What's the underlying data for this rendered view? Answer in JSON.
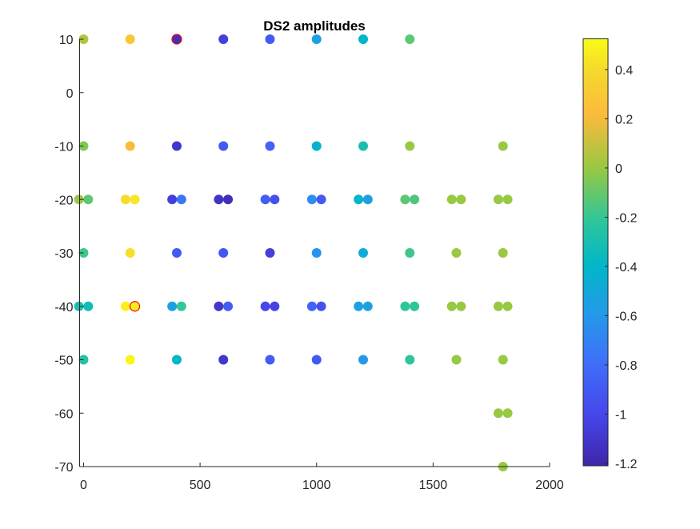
{
  "chart_data": {
    "type": "scatter",
    "title": "DS2 amplitudes",
    "xlabel": "",
    "ylabel": "",
    "xlim": [
      -17,
      2000
    ],
    "ylim": [
      -70,
      10
    ],
    "xticks": [
      "0",
      "500",
      "1000",
      "1500",
      "2000"
    ],
    "xtick_values": [
      0,
      500,
      1000,
      1500,
      2000
    ],
    "yticks": [
      "10",
      "0",
      "-10",
      "-20",
      "-30",
      "-40",
      "-50",
      "-60",
      "-70"
    ],
    "ytick_values": [
      10,
      0,
      -10,
      -20,
      -30,
      -40,
      -50,
      -60,
      -70
    ],
    "grid": false,
    "colormap": "parula",
    "colorbar": {
      "clim": [
        -1.21,
        0.525
      ],
      "ticks": [
        "0.4",
        "0.2",
        "0",
        "-0.2",
        "-0.4",
        "-0.6",
        "-0.8",
        "-1",
        "-1.2"
      ],
      "tick_values": [
        0.4,
        0.2,
        0,
        -0.2,
        -0.4,
        -0.6,
        -0.8,
        -1,
        -1.2
      ],
      "placement": "right"
    },
    "points": [
      {
        "x": 0,
        "y": 10,
        "v": 0.05
      },
      {
        "x": 200,
        "y": 10,
        "v": 0.3
      },
      {
        "x": 400,
        "y": 10,
        "v": -1.15,
        "edge": "#ff0000"
      },
      {
        "x": 600,
        "y": 10,
        "v": -1.05
      },
      {
        "x": 800,
        "y": 10,
        "v": -0.9
      },
      {
        "x": 1000,
        "y": 10,
        "v": -0.55
      },
      {
        "x": 1200,
        "y": 10,
        "v": -0.4
      },
      {
        "x": 1400,
        "y": 10,
        "v": -0.12
      },
      {
        "x": 0,
        "y": -10,
        "v": -0.05
      },
      {
        "x": 200,
        "y": -10,
        "v": 0.22
      },
      {
        "x": 400,
        "y": -10,
        "v": -1.1
      },
      {
        "x": 600,
        "y": -10,
        "v": -0.9
      },
      {
        "x": 800,
        "y": -10,
        "v": -0.85
      },
      {
        "x": 1000,
        "y": -10,
        "v": -0.42
      },
      {
        "x": 1200,
        "y": -10,
        "v": -0.3
      },
      {
        "x": 1400,
        "y": -10,
        "v": 0
      },
      {
        "x": 1800,
        "y": -10,
        "v": 0
      },
      {
        "x": -20,
        "y": -20,
        "v": 0
      },
      {
        "x": 20,
        "y": -20,
        "v": -0.12
      },
      {
        "x": 180,
        "y": -20,
        "v": 0.4
      },
      {
        "x": 220,
        "y": -20,
        "v": 0.45
      },
      {
        "x": 380,
        "y": -20,
        "v": -1.05
      },
      {
        "x": 420,
        "y": -20,
        "v": -0.75
      },
      {
        "x": 580,
        "y": -20,
        "v": -1.12
      },
      {
        "x": 620,
        "y": -20,
        "v": -1.15
      },
      {
        "x": 780,
        "y": -20,
        "v": -0.88
      },
      {
        "x": 820,
        "y": -20,
        "v": -0.95
      },
      {
        "x": 980,
        "y": -20,
        "v": -0.65
      },
      {
        "x": 1020,
        "y": -20,
        "v": -0.9
      },
      {
        "x": 1180,
        "y": -20,
        "v": -0.4
      },
      {
        "x": 1220,
        "y": -20,
        "v": -0.55
      },
      {
        "x": 1380,
        "y": -20,
        "v": -0.12
      },
      {
        "x": 1420,
        "y": -20,
        "v": -0.15
      },
      {
        "x": 1580,
        "y": -20,
        "v": 0
      },
      {
        "x": 1620,
        "y": -20,
        "v": 0
      },
      {
        "x": 1780,
        "y": -20,
        "v": 0
      },
      {
        "x": 1820,
        "y": -20,
        "v": 0
      },
      {
        "x": 0,
        "y": -30,
        "v": -0.18
      },
      {
        "x": 200,
        "y": -30,
        "v": 0.42
      },
      {
        "x": 400,
        "y": -30,
        "v": -0.9
      },
      {
        "x": 600,
        "y": -30,
        "v": -0.92
      },
      {
        "x": 800,
        "y": -30,
        "v": -1.05
      },
      {
        "x": 1000,
        "y": -30,
        "v": -0.62
      },
      {
        "x": 1200,
        "y": -30,
        "v": -0.47
      },
      {
        "x": 1400,
        "y": -30,
        "v": -0.18
      },
      {
        "x": 1600,
        "y": -30,
        "v": 0
      },
      {
        "x": 1800,
        "y": -30,
        "v": 0
      },
      {
        "x": -20,
        "y": -40,
        "v": -0.3
      },
      {
        "x": 20,
        "y": -40,
        "v": -0.33
      },
      {
        "x": 180,
        "y": -40,
        "v": 0.48
      },
      {
        "x": 220,
        "y": -40,
        "v": 0.48,
        "edge": "#ff0000"
      },
      {
        "x": 380,
        "y": -40,
        "v": -0.55
      },
      {
        "x": 420,
        "y": -40,
        "v": -0.2
      },
      {
        "x": 580,
        "y": -40,
        "v": -1.1
      },
      {
        "x": 620,
        "y": -40,
        "v": -0.88
      },
      {
        "x": 780,
        "y": -40,
        "v": -1.0
      },
      {
        "x": 820,
        "y": -40,
        "v": -1.02
      },
      {
        "x": 980,
        "y": -40,
        "v": -0.85
      },
      {
        "x": 1020,
        "y": -40,
        "v": -0.95
      },
      {
        "x": 1180,
        "y": -40,
        "v": -0.55
      },
      {
        "x": 1220,
        "y": -40,
        "v": -0.55
      },
      {
        "x": 1380,
        "y": -40,
        "v": -0.22
      },
      {
        "x": 1420,
        "y": -40,
        "v": -0.22
      },
      {
        "x": 1580,
        "y": -40,
        "v": 0
      },
      {
        "x": 1620,
        "y": -40,
        "v": 0
      },
      {
        "x": 1780,
        "y": -40,
        "v": 0
      },
      {
        "x": 1820,
        "y": -40,
        "v": 0
      },
      {
        "x": 0,
        "y": -50,
        "v": -0.25
      },
      {
        "x": 200,
        "y": -50,
        "v": 0.5
      },
      {
        "x": 400,
        "y": -50,
        "v": -0.4
      },
      {
        "x": 600,
        "y": -50,
        "v": -1.1
      },
      {
        "x": 800,
        "y": -50,
        "v": -0.88
      },
      {
        "x": 1000,
        "y": -50,
        "v": -0.9
      },
      {
        "x": 1200,
        "y": -50,
        "v": -0.6
      },
      {
        "x": 1400,
        "y": -50,
        "v": -0.22
      },
      {
        "x": 1600,
        "y": -50,
        "v": 0
      },
      {
        "x": 1800,
        "y": -50,
        "v": 0
      },
      {
        "x": 1780,
        "y": -60,
        "v": 0
      },
      {
        "x": 1820,
        "y": -60,
        "v": 0
      },
      {
        "x": 1800,
        "y": -70,
        "v": 0
      }
    ]
  }
}
